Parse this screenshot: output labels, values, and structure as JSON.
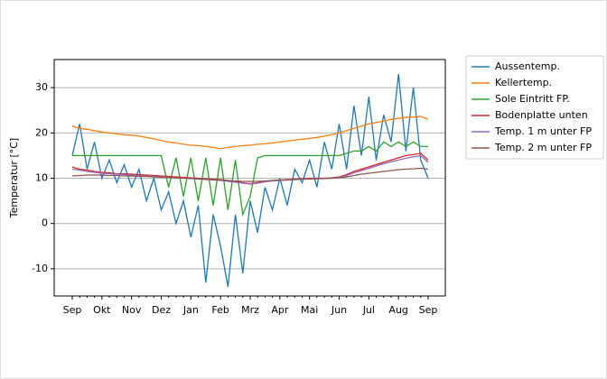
{
  "chart_data": {
    "type": "line",
    "y_label": "Temperatur [°C]",
    "categories": [
      "Sep",
      null,
      null,
      null,
      "Okt",
      null,
      null,
      null,
      "Nov",
      null,
      null,
      null,
      "Dez",
      null,
      null,
      null,
      "Jan",
      null,
      null,
      null,
      "Feb",
      null,
      null,
      null,
      "Mrz",
      null,
      null,
      null,
      "Apr",
      null,
      null,
      null,
      "Mai",
      null,
      null,
      null,
      "Jun",
      null,
      null,
      null,
      "Jul",
      null,
      null,
      null,
      "Aug",
      null,
      null,
      null,
      "Sep"
    ],
    "ylim": [
      -16,
      36.2
    ],
    "yticks": [
      -10,
      0,
      10,
      20,
      30
    ],
    "grid": true,
    "legend": "outside-right",
    "series": [
      {
        "name": "Aussentemp.",
        "color": "#1f77b4",
        "values": [
          15,
          22,
          12,
          18,
          10,
          14,
          9,
          13,
          8,
          12,
          5,
          10,
          3,
          7,
          0,
          5,
          -3,
          4,
          -13,
          2,
          -5,
          -14,
          2,
          -11,
          5,
          -2,
          8,
          3,
          10,
          4,
          12,
          9,
          14,
          8,
          18,
          12,
          22,
          12,
          26,
          15,
          28,
          14,
          24,
          18,
          33,
          16,
          30,
          14,
          10
        ]
      },
      {
        "name": "Kellertemp.",
        "color": "#ff7f0e",
        "values": [
          21.5,
          21,
          20.8,
          20.5,
          20.2,
          20,
          19.8,
          19.6,
          19.5,
          19.3,
          19,
          18.7,
          18.3,
          18,
          17.8,
          17.5,
          17.3,
          17.2,
          17,
          16.8,
          16.5,
          16.8,
          17,
          17.2,
          17.3,
          17.5,
          17.6,
          17.8,
          18,
          18.2,
          18.4,
          18.6,
          18.8,
          19,
          19.3,
          19.6,
          20,
          20.5,
          21,
          21.5,
          22,
          22.3,
          22.6,
          23,
          23.2,
          23.4,
          23.5,
          23.6,
          23
        ]
      },
      {
        "name": "Sole Eintritt FP.",
        "color": "#2ca02c",
        "values": [
          15,
          15,
          15,
          15,
          15,
          15,
          15,
          15,
          15,
          15,
          15,
          15,
          15,
          8,
          14.5,
          6,
          14.5,
          5,
          14.5,
          4,
          14.5,
          3,
          14,
          2,
          6,
          14.5,
          15,
          15,
          15,
          15,
          15,
          15,
          15,
          15,
          15,
          15,
          15,
          15.5,
          16,
          16,
          17,
          16,
          18,
          17,
          18,
          17,
          18,
          17,
          17
        ]
      },
      {
        "name": "Bodenplatte unten",
        "color": "#d62728",
        "values": [
          12.5,
          12,
          11.8,
          11.5,
          11.3,
          11.2,
          11,
          11,
          10.9,
          10.8,
          10.7,
          10.6,
          10.5,
          10.4,
          10.3,
          10.2,
          10.1,
          10,
          9.9,
          9.8,
          9.7,
          9.5,
          9.3,
          9,
          8.8,
          9,
          9.3,
          9.5,
          9.6,
          9.7,
          9.8,
          9.9,
          10,
          10,
          10,
          10.1,
          10.3,
          10.8,
          11.5,
          12,
          12.5,
          13,
          13.5,
          14,
          14.5,
          15,
          15.2,
          15.5,
          14
        ]
      },
      {
        "name": "Temp. 1 m unter FP",
        "color": "#9467bd",
        "values": [
          12,
          11.8,
          11.5,
          11.3,
          11.1,
          11,
          10.9,
          10.8,
          10.7,
          10.6,
          10.5,
          10.4,
          10.3,
          10.2,
          10.1,
          10,
          9.9,
          9.8,
          9.7,
          9.6,
          9.5,
          9.3,
          9.1,
          8.9,
          8.7,
          8.9,
          9.2,
          9.4,
          9.5,
          9.6,
          9.7,
          9.8,
          9.9,
          9.9,
          10,
          10,
          10.2,
          10.6,
          11.2,
          11.7,
          12.2,
          12.7,
          13.2,
          13.6,
          14,
          14.4,
          14.7,
          15,
          13.5
        ]
      },
      {
        "name": "Temp. 2 m unter FP",
        "color": "#8c564b",
        "values": [
          10.5,
          10.6,
          10.7,
          10.7,
          10.7,
          10.6,
          10.6,
          10.5,
          10.5,
          10.4,
          10.4,
          10.3,
          10.2,
          10.2,
          10.1,
          10,
          10,
          9.9,
          9.8,
          9.7,
          9.6,
          9.5,
          9.4,
          9.3,
          9.3,
          9.3,
          9.4,
          9.5,
          9.6,
          9.6,
          9.7,
          9.8,
          9.8,
          9.9,
          9.9,
          10,
          10.1,
          10.3,
          10.6,
          10.9,
          11.1,
          11.3,
          11.5,
          11.7,
          11.9,
          12,
          12.1,
          12.2,
          12
        ]
      }
    ]
  }
}
